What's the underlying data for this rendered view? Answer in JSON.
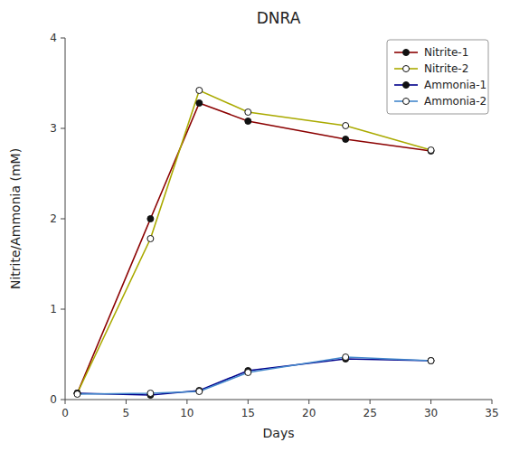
{
  "chart_data": {
    "type": "line",
    "title": "DNRA",
    "x_label": "Days",
    "y_label": "Nitrite/Ammonia (mM)",
    "x": [
      1,
      7,
      11,
      15,
      23,
      30
    ],
    "series": [
      {
        "name": "Nitrite-1",
        "color": "#8b0000",
        "marker": "filled-circle",
        "values": [
          0.07,
          2.0,
          3.28,
          3.08,
          2.88,
          2.75
        ]
      },
      {
        "name": "Nitrite-2",
        "color": "#aaaa00",
        "marker": "open-circle",
        "values": [
          0.07,
          1.78,
          3.42,
          3.18,
          3.03,
          2.76
        ]
      },
      {
        "name": "Ammonia-1",
        "color": "#00008b",
        "marker": "filled-circle",
        "values": [
          0.07,
          0.05,
          0.1,
          0.32,
          0.45,
          0.43
        ]
      },
      {
        "name": "Ammonia-2",
        "color": "#4488cc",
        "marker": "open-circle",
        "values": [
          0.06,
          0.07,
          0.09,
          0.3,
          0.47,
          0.43
        ]
      }
    ],
    "xlim": [
      0,
      35
    ],
    "ylim": [
      0,
      4
    ],
    "xticks": [
      0,
      5,
      10,
      15,
      20,
      25,
      30,
      35
    ],
    "yticks": [
      0,
      1,
      2,
      3,
      4
    ],
    "grid": false,
    "legend": "upper-right"
  }
}
